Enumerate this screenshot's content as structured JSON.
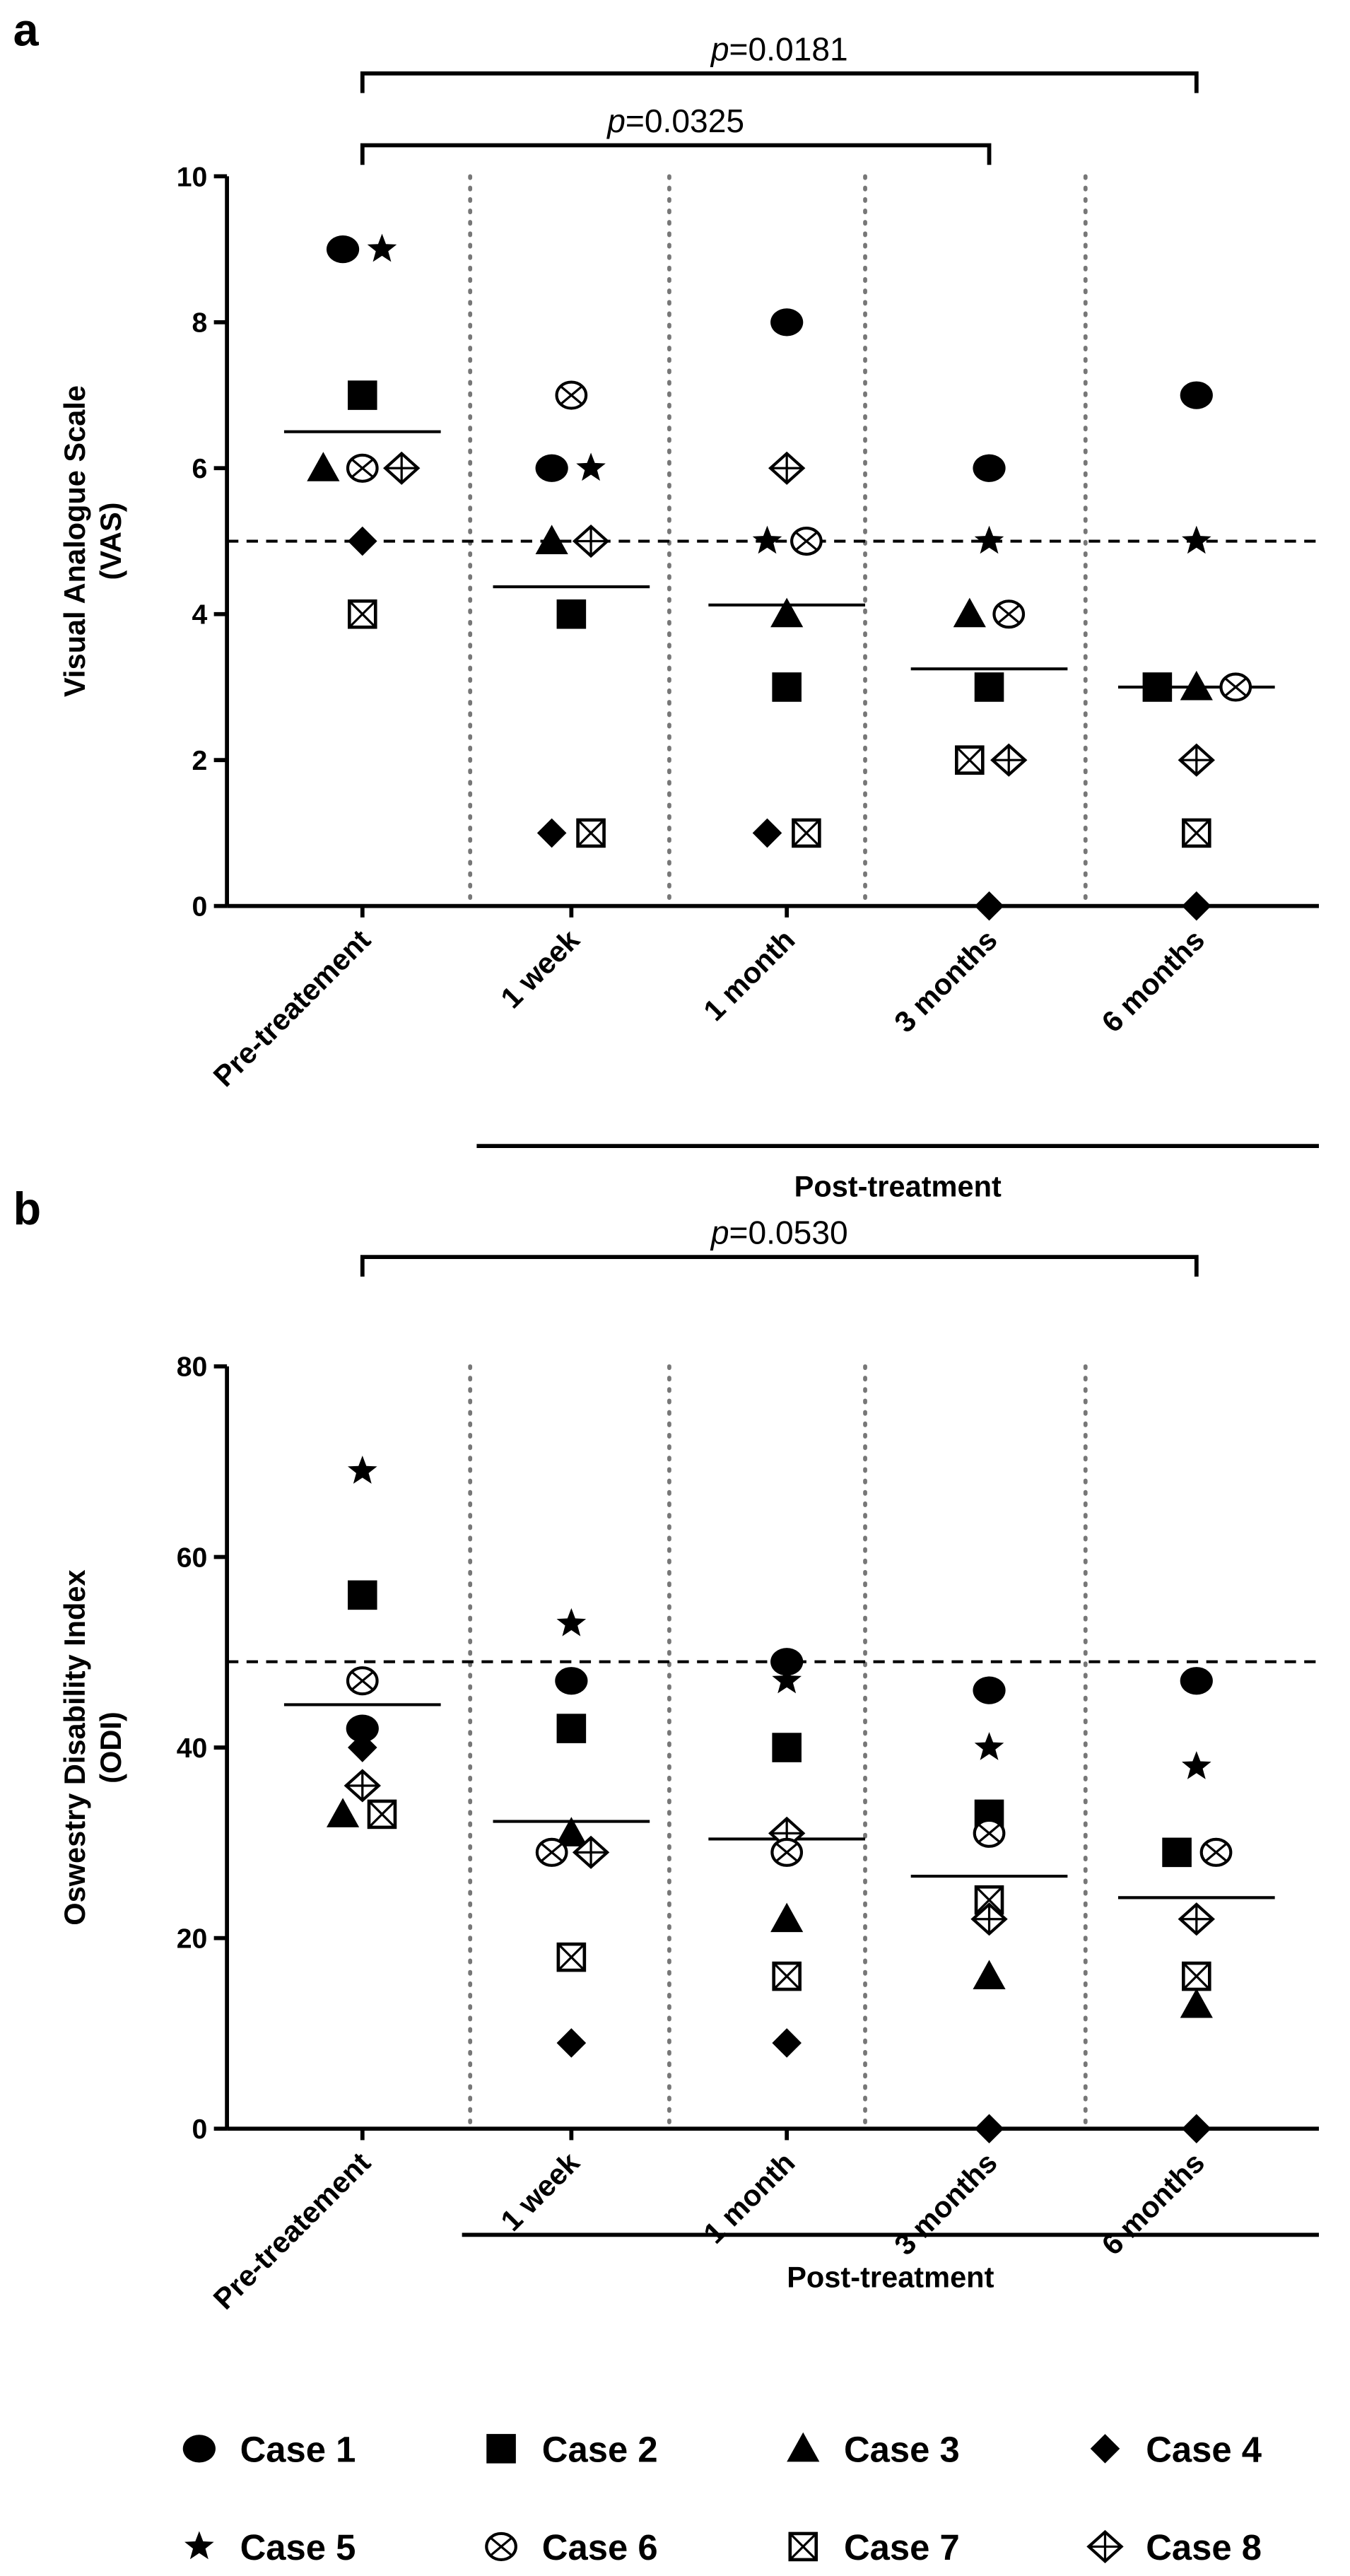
{
  "chart_data": [
    {
      "type": "scatter",
      "panel_label": "a",
      "ylabel_line1": "Visual Analogue Scale",
      "ylabel_line2": "(VAS)",
      "ylim": [
        0,
        10
      ],
      "yticks": [
        0,
        2,
        4,
        6,
        8,
        10
      ],
      "categories": [
        "Pre-treatement",
        "1 week",
        "1 month",
        "3 months",
        "6 months"
      ],
      "group_label": "Post-treatment",
      "reference_line": 5,
      "brackets": [
        {
          "from": "Pre-treatement",
          "to": "6 months",
          "p_prefix": "p",
          "p_value": "=0.0181"
        },
        {
          "from": "Pre-treatement",
          "to": "3 months",
          "p_prefix": "p",
          "p_value": "=0.0325"
        }
      ],
      "means": [
        6.5,
        4.375,
        4.125,
        3.25,
        3.0
      ],
      "series": [
        {
          "name": "Case 1",
          "marker": "circle",
          "values": [
            9,
            6,
            8,
            6,
            7
          ]
        },
        {
          "name": "Case 2",
          "marker": "square",
          "values": [
            7,
            4,
            3,
            3,
            3
          ]
        },
        {
          "name": "Case 3",
          "marker": "triangle",
          "values": [
            6,
            5,
            4,
            4,
            3
          ]
        },
        {
          "name": "Case 4",
          "marker": "diamond",
          "values": [
            5,
            1,
            1,
            0,
            0
          ]
        },
        {
          "name": "Case 5",
          "marker": "star",
          "values": [
            9,
            6,
            5,
            5,
            5
          ]
        },
        {
          "name": "Case 6",
          "marker": "circle-x",
          "values": [
            6,
            7,
            5,
            4,
            3
          ]
        },
        {
          "name": "Case 7",
          "marker": "square-x",
          "values": [
            4,
            1,
            1,
            2,
            1
          ]
        },
        {
          "name": "Case 8",
          "marker": "diamond-plus",
          "values": [
            6,
            5,
            6,
            2,
            2
          ]
        }
      ]
    },
    {
      "type": "scatter",
      "panel_label": "b",
      "ylabel_line1": "Oswestry Disability Index",
      "ylabel_line2": "(ODI)",
      "ylim": [
        0,
        80
      ],
      "yticks": [
        0,
        20,
        40,
        60,
        80
      ],
      "categories": [
        "Pre-treatement",
        "1 week",
        "1 month",
        "3 months",
        "6 months"
      ],
      "group_label": "Post-treatment",
      "reference_line": 49,
      "brackets": [
        {
          "from": "Pre-treatement",
          "to": "6 months",
          "p_prefix": "p",
          "p_value": "=0.0530"
        }
      ],
      "means": [
        44.5,
        32.25,
        30.4,
        26.5,
        24.25
      ],
      "series": [
        {
          "name": "Case 1",
          "marker": "circle",
          "values": [
            42,
            47,
            49,
            46,
            47
          ]
        },
        {
          "name": "Case 2",
          "marker": "square",
          "values": [
            56,
            42,
            40,
            33,
            29
          ]
        },
        {
          "name": "Case 3",
          "marker": "triangle",
          "values": [
            33,
            31,
            22,
            16,
            13
          ]
        },
        {
          "name": "Case 4",
          "marker": "diamond",
          "values": [
            40,
            9,
            9,
            0,
            0
          ]
        },
        {
          "name": "Case 5",
          "marker": "star",
          "values": [
            69,
            53,
            47,
            40,
            38
          ]
        },
        {
          "name": "Case 6",
          "marker": "circle-x",
          "values": [
            47,
            29,
            29,
            31,
            29
          ]
        },
        {
          "name": "Case 7",
          "marker": "square-x",
          "values": [
            33,
            18,
            16,
            24,
            16
          ]
        },
        {
          "name": "Case 8",
          "marker": "diamond-plus",
          "values": [
            36,
            29,
            31,
            22,
            22
          ]
        }
      ]
    }
  ]
}
